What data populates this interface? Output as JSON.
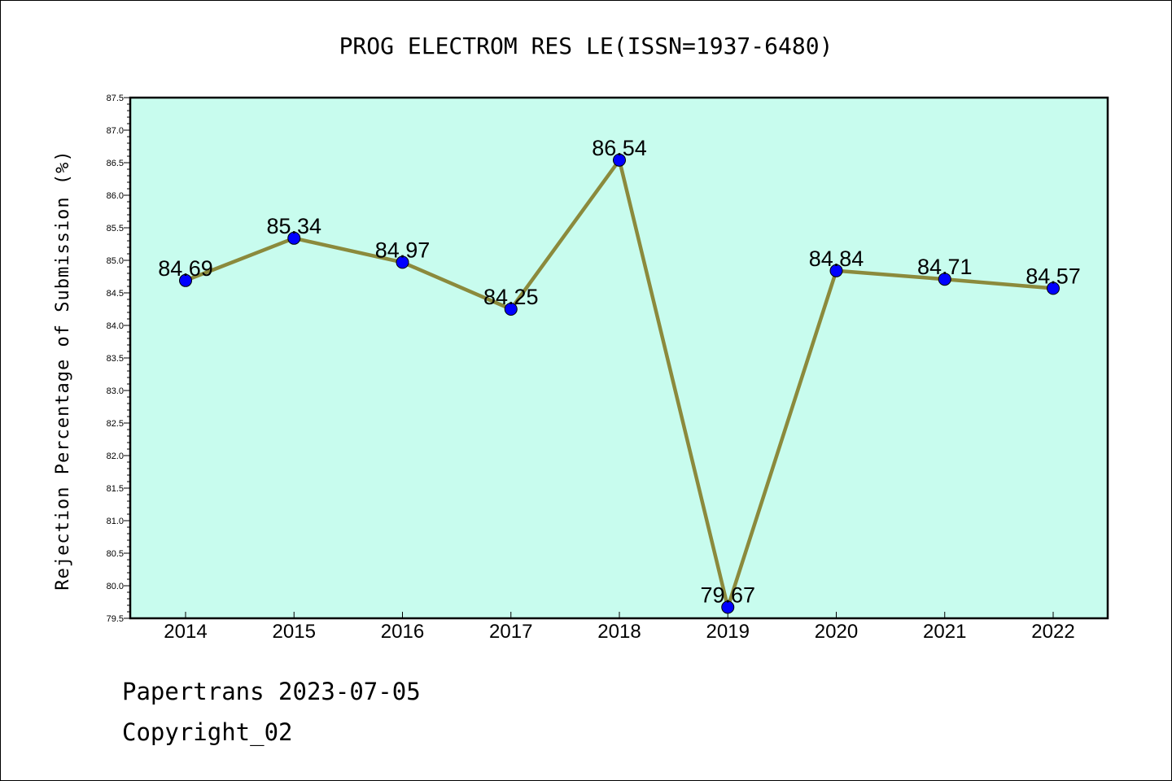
{
  "chart_data": {
    "type": "line",
    "title": "PROG ELECTROM RES LE(ISSN=1937-6480)",
    "xlabel": "",
    "ylabel": "Rejection Percentage of Submission (%)",
    "categories": [
      "2014",
      "2015",
      "2016",
      "2017",
      "2018",
      "2019",
      "2020",
      "2021",
      "2022"
    ],
    "values": [
      84.69,
      85.34,
      84.97,
      84.25,
      86.54,
      79.67,
      84.84,
      84.71,
      84.57
    ],
    "data_labels": [
      "84.69",
      "85.34",
      "84.97",
      "84.25",
      "86.54",
      "79.67",
      "84.84",
      "84.71",
      "84.57"
    ],
    "ylim": [
      79.5,
      87.5
    ],
    "yticks": [
      "79.5",
      "80.0",
      "80.5",
      "81.0",
      "81.5",
      "82.0",
      "82.5",
      "83.0",
      "83.5",
      "84.0",
      "84.5",
      "85.0",
      "85.5",
      "86.0",
      "86.5",
      "87.0",
      "87.5"
    ],
    "grid": false,
    "colors": {
      "plot_background": "#c8fcee",
      "line": "#8b8a3c",
      "marker": "#0000ff"
    }
  },
  "footer": {
    "line1": "Papertrans 2023-07-05",
    "line2": "Copyright_02"
  }
}
